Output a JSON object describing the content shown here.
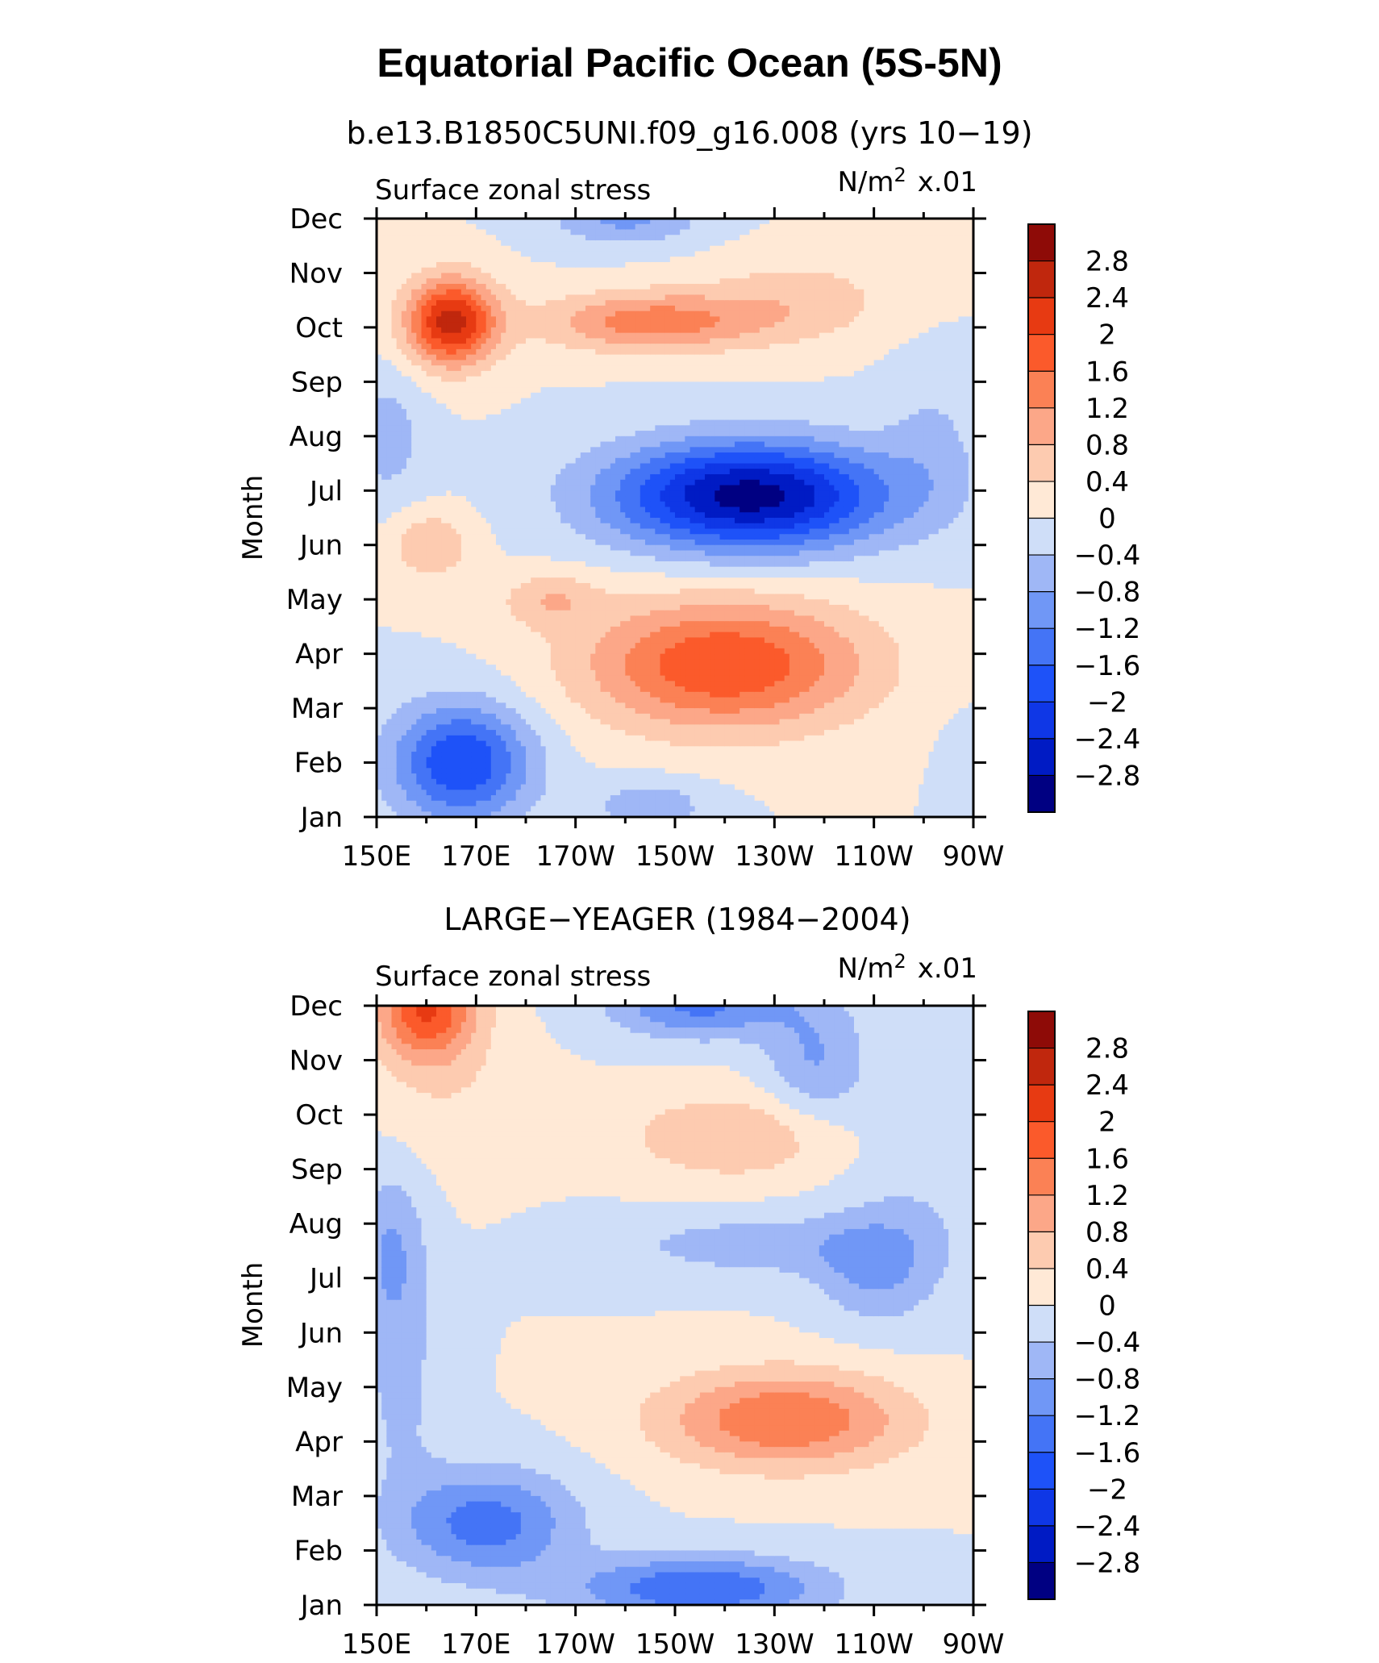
{
  "title": "Equatorial Pacific Ocean (5S-5N)",
  "chart_data": [
    {
      "type": "heatmap",
      "title": "b.e13.B1850C5UNI.f09_g16.008 (yrs 10−19)",
      "left_label": "Surface zonal stress",
      "units_main": "N/m",
      "units_sup": "2",
      "units_scale": "x.01",
      "ylabel": "Month",
      "x_ticks": [
        "150E",
        "170E",
        "170W",
        "150W",
        "130W",
        "110W",
        "90W"
      ],
      "y_ticks": [
        "Jan",
        "Feb",
        "Mar",
        "Apr",
        "May",
        "Jun",
        "Jul",
        "Aug",
        "Sep",
        "Oct",
        "Nov",
        "Dec"
      ],
      "xlim": [
        150,
        270
      ],
      "ylim": [
        1,
        12
      ],
      "levels": [
        -3.2,
        -2.8,
        -2.4,
        -2.0,
        -1.6,
        -1.2,
        -0.8,
        -0.4,
        0,
        0.4,
        0.8,
        1.2,
        1.6,
        2.0,
        2.4,
        2.8,
        3.2
      ],
      "colorbar_labels": [
        "2.8",
        "2.4",
        "2",
        "1.6",
        "1.2",
        "0.8",
        "0.4",
        "0",
        "−0.4",
        "−0.8",
        "−1.2",
        "−1.6",
        "−2",
        "−2.4",
        "−2.8"
      ],
      "features": [
        {
          "x": 165,
          "y": 10.1,
          "amp": 2.6,
          "sx": 9,
          "sy": 0.8
        },
        {
          "x": 205,
          "y": 10.1,
          "amp": 1.4,
          "sx": 22,
          "sy": 0.55
        },
        {
          "x": 235,
          "y": 10.5,
          "amp": 0.6,
          "sx": 20,
          "sy": 0.8
        },
        {
          "x": 200,
          "y": 12.0,
          "amp": -0.9,
          "sx": 15,
          "sy": 0.5
        },
        {
          "x": 225,
          "y": 6.9,
          "amp": -3.0,
          "sx": 28,
          "sy": 1.0
        },
        {
          "x": 262,
          "y": 8.0,
          "amp": -0.4,
          "sx": 10,
          "sy": 1.5
        },
        {
          "x": 152,
          "y": 8.0,
          "amp": -0.6,
          "sx": 8,
          "sy": 1.2
        },
        {
          "x": 161,
          "y": 6.0,
          "amp": 0.8,
          "sx": 8,
          "sy": 0.6
        },
        {
          "x": 185,
          "y": 5.0,
          "amp": 0.7,
          "sx": 10,
          "sy": 0.5
        },
        {
          "x": 220,
          "y": 3.8,
          "amp": 2.0,
          "sx": 28,
          "sy": 1.2
        },
        {
          "x": 167,
          "y": 2.0,
          "amp": -2.0,
          "sx": 14,
          "sy": 1.1
        },
        {
          "x": 205,
          "y": 1.2,
          "amp": -0.7,
          "sx": 12,
          "sy": 0.5
        },
        {
          "x": 268,
          "y": 2.0,
          "amp": -0.2,
          "sx": 5,
          "sy": 1.0
        }
      ]
    },
    {
      "type": "heatmap",
      "title": "LARGE−YEAGER (1984−2004)",
      "left_label": "Surface zonal stress",
      "units_main": "N/m",
      "units_sup": "2",
      "units_scale": "x.01",
      "ylabel": "Month",
      "x_ticks": [
        "150E",
        "170E",
        "170W",
        "150W",
        "130W",
        "110W",
        "90W"
      ],
      "y_ticks": [
        "Jan",
        "Feb",
        "Mar",
        "Apr",
        "May",
        "Jun",
        "Jul",
        "Aug",
        "Sep",
        "Oct",
        "Nov",
        "Dec"
      ],
      "xlim": [
        150,
        270
      ],
      "ylim": [
        1,
        12
      ],
      "levels": [
        -3.2,
        -2.8,
        -2.4,
        -2.0,
        -1.6,
        -1.2,
        -0.8,
        -0.4,
        0,
        0.4,
        0.8,
        1.2,
        1.6,
        2.0,
        2.4,
        2.8,
        3.2
      ],
      "colorbar_labels": [
        "2.8",
        "2.4",
        "2",
        "1.6",
        "1.2",
        "0.8",
        "0.4",
        "0",
        "−0.4",
        "−0.8",
        "−1.2",
        "−1.6",
        "−2",
        "−2.4",
        "−2.8"
      ],
      "features": [
        {
          "x": 160,
          "y": 12.0,
          "amp": 2.0,
          "sx": 10,
          "sy": 1.0
        },
        {
          "x": 165,
          "y": 10.5,
          "amp": 0.3,
          "sx": 15,
          "sy": 1.5
        },
        {
          "x": 222,
          "y": 9.6,
          "amp": 0.8,
          "sx": 22,
          "sy": 0.8
        },
        {
          "x": 215,
          "y": 12.0,
          "amp": -1.3,
          "sx": 18,
          "sy": 0.6
        },
        {
          "x": 238,
          "y": 11.0,
          "amp": -0.8,
          "sx": 10,
          "sy": 1.2
        },
        {
          "x": 225,
          "y": 7.6,
          "amp": -0.6,
          "sx": 28,
          "sy": 0.6
        },
        {
          "x": 250,
          "y": 7.2,
          "amp": -0.8,
          "sx": 12,
          "sy": 1.0
        },
        {
          "x": 260,
          "y": 9.0,
          "amp": -0.3,
          "sx": 15,
          "sy": 2.5
        },
        {
          "x": 153,
          "y": 7.5,
          "amp": -0.8,
          "sx": 7,
          "sy": 1.5
        },
        {
          "x": 232,
          "y": 4.4,
          "amp": 1.6,
          "sx": 25,
          "sy": 0.9
        },
        {
          "x": 172,
          "y": 2.5,
          "amp": -1.4,
          "sx": 18,
          "sy": 1.0
        },
        {
          "x": 215,
          "y": 1.3,
          "amp": -1.6,
          "sx": 25,
          "sy": 0.6
        },
        {
          "x": 155,
          "y": 5.0,
          "amp": -0.5,
          "sx": 8,
          "sy": 2.0
        }
      ]
    }
  ],
  "colors": {
    "palette": [
      "#000082",
      "#001bc4",
      "#0f37e6",
      "#1e52f8",
      "#4474f6",
      "#7097f6",
      "#9fb7f6",
      "#cfdef8",
      "#ffe9d6",
      "#fdcbb0",
      "#fca788",
      "#fb8155",
      "#fb5a2b",
      "#e73a12",
      "#c0270d",
      "#8e0b07"
    ]
  }
}
